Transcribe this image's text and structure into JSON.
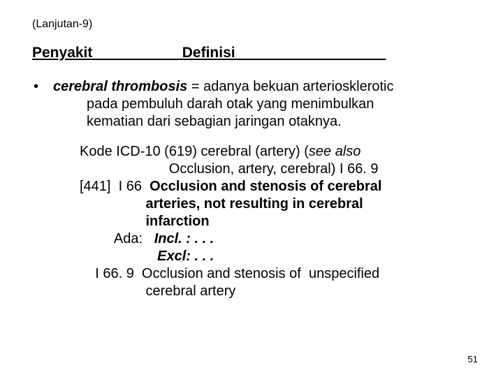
{
  "continuation": "(Lanjutan-9)",
  "header_line": "Penyakit                      Definisi                                     ",
  "bullet": {
    "term": "cerebral thrombosis",
    "rest_line1": " = adanya bekuan arteriosklerotic",
    "line2": "pada pembuluh darah otak yang menimbulkan",
    "line3": "kematian dari sebagian jaringan otaknya."
  },
  "codes": {
    "l1a": "Kode ICD-10 (619) cerebral (artery) (",
    "l1b": "see also",
    "l2": "                       Occlusion, artery, cerebral) I 66. 9",
    "l3a": "[441]  I 66  ",
    "l3b": "Occlusion and stenosis of cerebral",
    "l4": "                 arteries, not resulting in cerebral",
    "l5": "                 infarction",
    "l6a": "         Ada:   ",
    "l6b": "Incl. : . . .",
    "l7": "                    Excl: . . .",
    "l8": "    I 66. 9  Occlusion and stenosis of  unspecified",
    "l9": "                 cerebral artery"
  },
  "page_number": "51"
}
